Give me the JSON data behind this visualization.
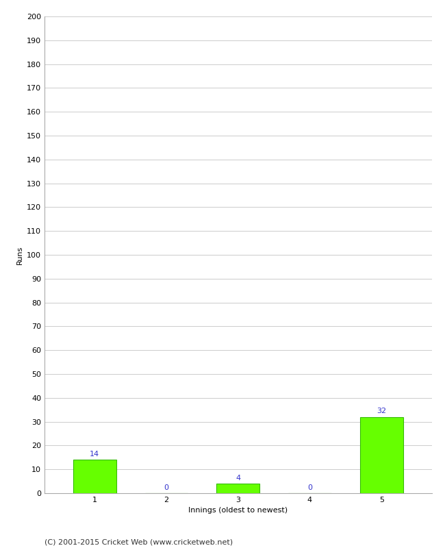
{
  "categories": [
    "1",
    "2",
    "3",
    "4",
    "5"
  ],
  "values": [
    14,
    0,
    4,
    0,
    32
  ],
  "bar_color": "#66ff00",
  "bar_edge_color": "#33bb00",
  "ylabel": "Runs",
  "xlabel": "Innings (oldest to newest)",
  "ylim": [
    0,
    200
  ],
  "yticks": [
    0,
    10,
    20,
    30,
    40,
    50,
    60,
    70,
    80,
    90,
    100,
    110,
    120,
    130,
    140,
    150,
    160,
    170,
    180,
    190,
    200
  ],
  "label_color": "#3333cc",
  "label_fontsize": 8,
  "axis_fontsize": 8,
  "tick_fontsize": 8,
  "footer_text": "(C) 2001-2015 Cricket Web (www.cricketweb.net)",
  "footer_fontsize": 8,
  "background_color": "#ffffff",
  "grid_color": "#cccccc",
  "bar_width": 0.6
}
